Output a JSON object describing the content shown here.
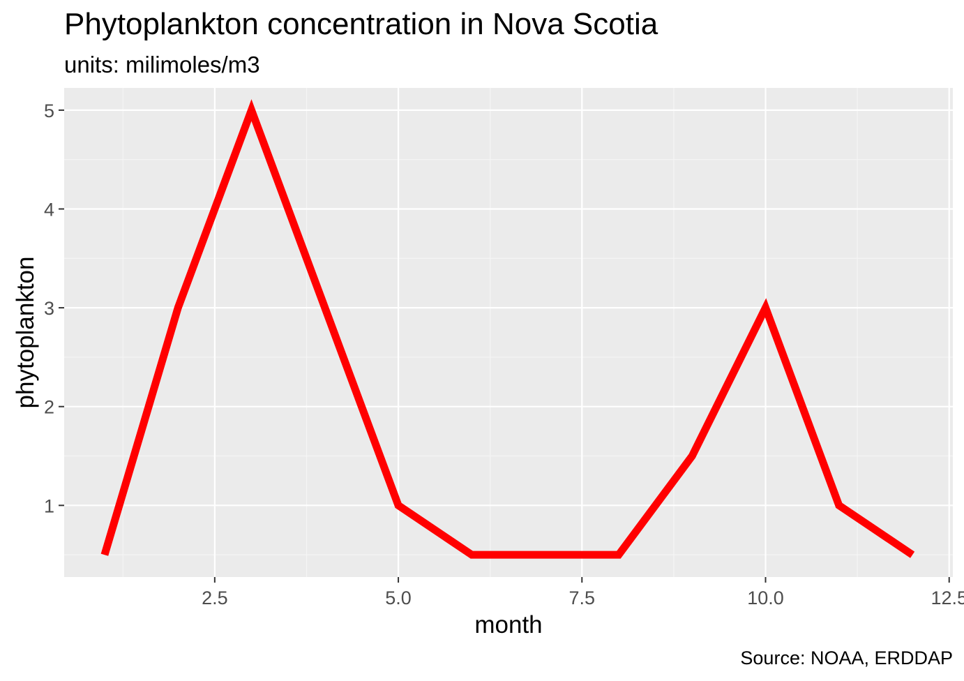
{
  "chart_data": {
    "type": "line",
    "title": "Phytoplankton concentration in Nova Scotia",
    "subtitle": "units: milimoles/m3",
    "caption": "Source: NOAA, ERDDAP",
    "xlabel": "month",
    "ylabel": "phytoplankton",
    "x_ticks": [
      "2.5",
      "5.0",
      "7.5",
      "10.0",
      "12.5"
    ],
    "y_ticks": [
      "1",
      "2",
      "3",
      "4",
      "5"
    ],
    "xlim": [
      0.45,
      12.55
    ],
    "ylim": [
      0.275,
      5.225
    ],
    "grid": true,
    "series": [
      {
        "color": "#ff0000",
        "x": [
          1,
          2,
          3,
          4,
          5,
          6,
          7,
          8,
          9,
          10,
          11,
          12
        ],
        "values": [
          0.5,
          3,
          5,
          3,
          1,
          0.5,
          0.5,
          0.5,
          1.5,
          3,
          1,
          0.5
        ]
      }
    ]
  },
  "colors": {
    "panel_background": "#ebebeb",
    "grid_major": "#ffffff",
    "grid_minor": "#f5f5f5",
    "tick_text": "#4d4d4d",
    "line": "#ff0000"
  }
}
